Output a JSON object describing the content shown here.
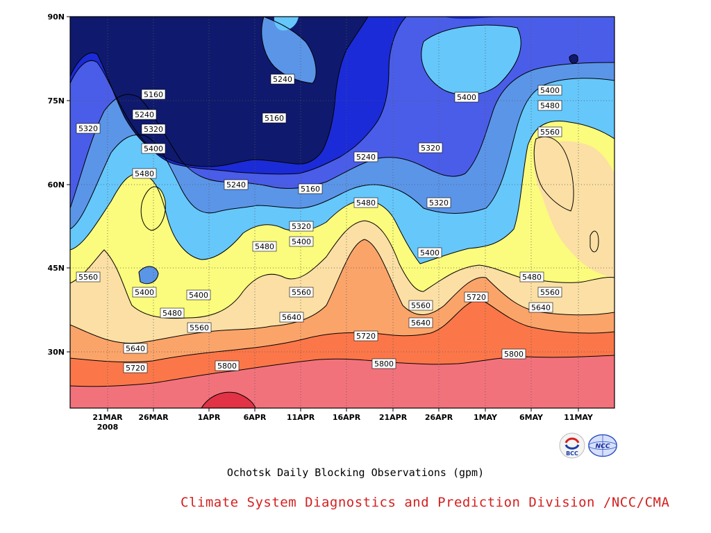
{
  "chart_data": {
    "type": "contour",
    "title": "Ochotsk Daily Blocking Observations (gpm)",
    "footer": "Climate System Diagnostics and Prediction Division /NCC/CMA",
    "x_ticks": [
      "21MAR",
      "26MAR",
      "1APR",
      "6APR",
      "11APR",
      "16APR",
      "21APR",
      "26APR",
      "1MAY",
      "6MAY",
      "11MAY"
    ],
    "x_year_label": "2008",
    "y_ticks": [
      "90N",
      "75N",
      "60N",
      "45N",
      "30N"
    ],
    "contour_levels": [
      5160,
      5240,
      5320,
      5400,
      5480,
      5560,
      5640,
      5720,
      5800
    ],
    "fill_colors": [
      "#0f1a6e",
      "#1b2bd8",
      "#4a5de8",
      "#5b95e8",
      "#66c7fb",
      "#fbfb7d",
      "#fbdfa4",
      "#fba46a",
      "#fb7749",
      "#f2727c",
      "#e23245"
    ],
    "contour_labels": [
      "5160",
      "5240",
      "5320",
      "5400",
      "5480",
      "5560",
      "5640",
      "5720",
      "5800"
    ],
    "grid": "dotted",
    "logos": [
      "BCC",
      "NCC"
    ]
  }
}
